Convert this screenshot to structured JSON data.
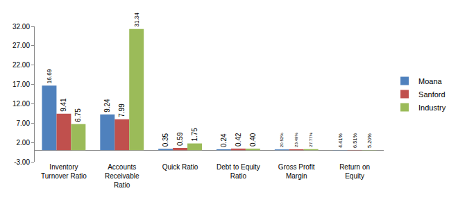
{
  "chart_data": {
    "type": "bar",
    "categories": [
      "Inventory Turnover Ratio",
      "Accounts Receivable Ratio",
      "Quick Ratio",
      "Debt to Equity Ratio",
      "Gross Profit Margin",
      "Return on Equity"
    ],
    "series": [
      {
        "name": "Moana",
        "color": "#4f81bd",
        "values": [
          16.69,
          9.24,
          0.35,
          0.24,
          0.2052,
          0.0441
        ],
        "value_labels": [
          "16.69",
          "9.24",
          "0.35",
          "0.24",
          "20.52%",
          "4.41%"
        ]
      },
      {
        "name": "Sanford",
        "color": "#c0504d",
        "values": [
          9.41,
          7.99,
          0.59,
          0.42,
          0.2349,
          0.0651
        ],
        "value_labels": [
          "9.41",
          "7.99",
          "0.59",
          "0.42",
          "23.49%",
          "6.51%"
        ]
      },
      {
        "name": "Industry",
        "color": "#9bbb59",
        "values": [
          6.75,
          31.34,
          1.75,
          0.4,
          0.2777,
          0.052
        ],
        "value_labels": [
          "6.75",
          "31.34",
          "1.75",
          "0.40",
          "27.77%",
          "5.20%"
        ]
      }
    ],
    "ylim": [
      -3,
      32
    ],
    "yticks": [
      {
        "value": -3,
        "label": "-3.00"
      },
      {
        "value": 2,
        "label": "2.00"
      },
      {
        "value": 7,
        "label": "7.00"
      },
      {
        "value": 12,
        "label": "12.00"
      },
      {
        "value": 17,
        "label": "17.00"
      },
      {
        "value": 22,
        "label": "22.00"
      },
      {
        "value": 27,
        "label": "27.00"
      },
      {
        "value": 32,
        "label": "32.00"
      }
    ],
    "grid": false,
    "legend": "right",
    "data_labels": true
  }
}
